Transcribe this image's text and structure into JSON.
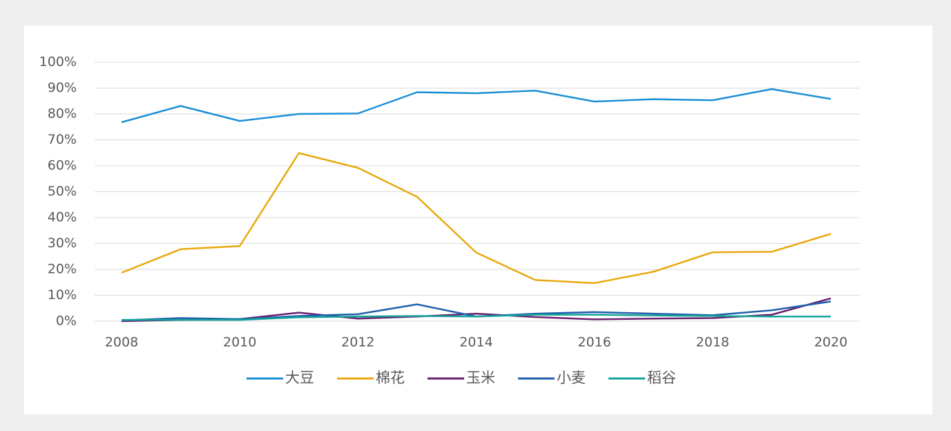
{
  "chart_data": {
    "type": "line",
    "x": [
      2008,
      2009,
      2010,
      2011,
      2012,
      2013,
      2014,
      2015,
      2016,
      2017,
      2018,
      2019,
      2020
    ],
    "series": [
      {
        "name": "大豆",
        "color": "#1a8fd6",
        "values": [
          76.8,
          83.1,
          77.3,
          80,
          80.2,
          88.4,
          88,
          89,
          84.8,
          85.7,
          85.3,
          89.6,
          85.8
        ]
      },
      {
        "name": "棉花",
        "color": "#e8a90e",
        "values": [
          18.7,
          27.8,
          29,
          64.9,
          59.2,
          48,
          26.5,
          15.9,
          14.7,
          19.1,
          26.6,
          26.8,
          33.7
        ]
      },
      {
        "name": "玉米",
        "color": "#6a1f6f",
        "values": [
          0,
          0.5,
          0.8,
          3.3,
          1,
          1.8,
          2.9,
          1.6,
          0.7,
          1,
          1.2,
          2.5,
          8.8
        ]
      },
      {
        "name": "小麦",
        "color": "#1f5fab",
        "values": [
          0.3,
          1.2,
          0.8,
          2,
          2.7,
          6.5,
          1.8,
          2.9,
          3.5,
          2.9,
          2.3,
          4.2,
          7.6
        ]
      },
      {
        "name": "稻谷",
        "color": "#13a39a",
        "values": [
          0.5,
          0.5,
          0.5,
          1.5,
          1.8,
          2,
          1.8,
          2.5,
          2.5,
          2.2,
          2,
          1.8,
          1.8
        ]
      }
    ],
    "xlim": [
      2008,
      2020
    ],
    "xticks": [
      2008,
      2010,
      2012,
      2014,
      2016,
      2018,
      2020
    ],
    "ylim": [
      0,
      100
    ],
    "yticks": [
      {
        "value": 0,
        "label": "0%"
      },
      {
        "value": 10,
        "label": "10%"
      },
      {
        "value": 20,
        "label": "20%"
      },
      {
        "value": 30,
        "label": "30%"
      },
      {
        "value": 40,
        "label": "40%"
      },
      {
        "value": 50,
        "label": "50%"
      },
      {
        "value": 60,
        "label": "60%"
      },
      {
        "value": 70,
        "label": "70%"
      },
      {
        "value": 80,
        "label": "80%"
      },
      {
        "value": 90,
        "label": "90%"
      },
      {
        "value": 100,
        "label": "100%"
      }
    ],
    "grid": true,
    "legend": "bottom"
  }
}
